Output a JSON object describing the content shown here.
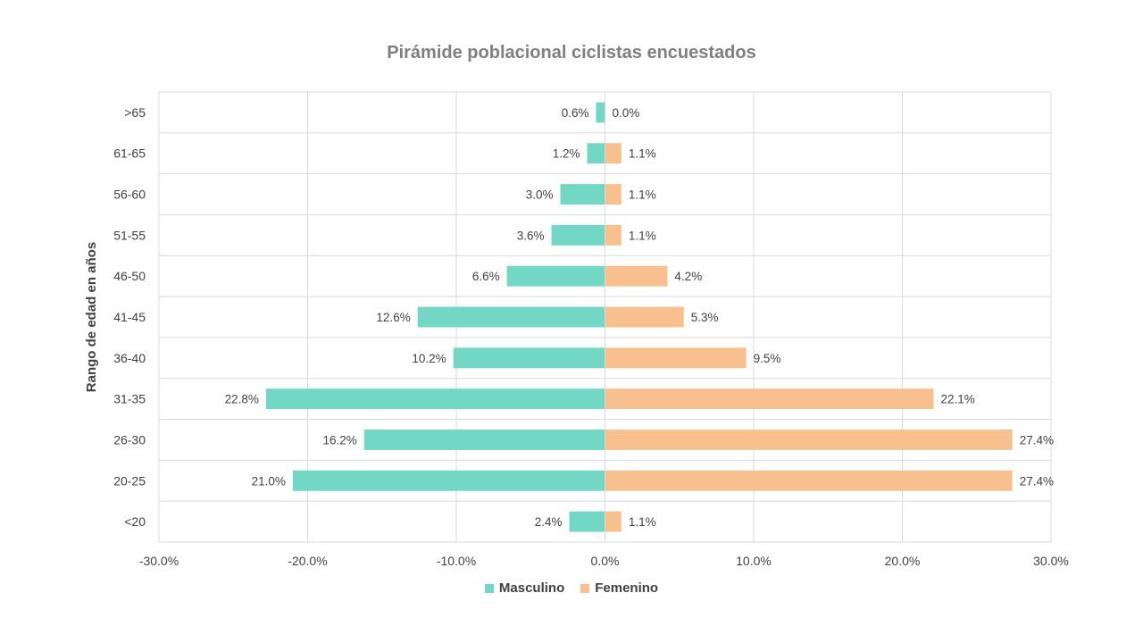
{
  "chart_data": {
    "type": "bar",
    "orientation": "horizontal",
    "title": "Pirámide poblacional ciclistas encuestados",
    "ylabel": "Rango de edad en años",
    "xlabel": "",
    "categories": [
      ">65",
      "61-65",
      "56-60",
      "51-55",
      "46-50",
      "41-45",
      "36-40",
      "31-35",
      "26-30",
      "20-25",
      "<20"
    ],
    "series": [
      {
        "name": "Masculino",
        "color": "#72d7c4",
        "values": [
          -0.6,
          -1.2,
          -3.0,
          -3.6,
          -6.6,
          -12.6,
          -10.2,
          -22.8,
          -16.2,
          -21.0,
          -2.4
        ],
        "labels": [
          "0.6%",
          "1.2%",
          "3.0%",
          "3.6%",
          "6.6%",
          "12.6%",
          "10.2%",
          "22.8%",
          "16.2%",
          "21.0%",
          "2.4%"
        ]
      },
      {
        "name": "Femenino",
        "color": "#f8c08f",
        "values": [
          0.0,
          1.1,
          1.1,
          1.1,
          4.2,
          5.3,
          9.5,
          22.1,
          27.4,
          27.4,
          1.1
        ],
        "labels": [
          "0.0%",
          "1.1%",
          "1.1%",
          "1.1%",
          "4.2%",
          "5.3%",
          "9.5%",
          "22.1%",
          "27.4%",
          "27.4%",
          "1.1%"
        ]
      }
    ],
    "xlim": [
      -30,
      30
    ],
    "xticks": [
      -30,
      -20,
      -10,
      0,
      10,
      20,
      30
    ],
    "xtick_labels": [
      "-30.0%",
      "-20.0%",
      "-10.0%",
      "0.0%",
      "10.0%",
      "20.0%",
      "30.0%"
    ],
    "grid": true,
    "legend_position": "bottom"
  }
}
